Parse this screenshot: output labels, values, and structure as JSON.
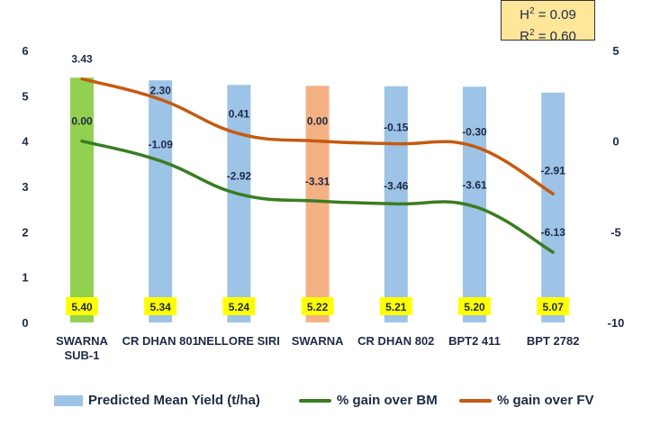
{
  "chart_data": {
    "type": "bar",
    "categories": [
      "SWARNA SUB-1",
      "CR DHAN 801",
      "NELLORE SIRI",
      "SWARNA",
      "CR DHAN 802",
      "BPT2 411",
      "BPT 2782"
    ],
    "y_left": {
      "min": 0,
      "max": 6,
      "ticks": [
        "0",
        "1",
        "2",
        "3",
        "4",
        "5",
        "6"
      ]
    },
    "y_right": {
      "min": -10,
      "max": 5,
      "ticks": [
        "-10",
        "-5",
        "0",
        "5"
      ]
    },
    "grid": false,
    "legend_position": "bottom",
    "series": [
      {
        "name": "Predicted Mean Yield (t/ha)",
        "kind": "bar",
        "axis": "left",
        "values": [
          5.4,
          5.34,
          5.24,
          5.22,
          5.21,
          5.2,
          5.07
        ],
        "labels": [
          "5.40",
          "5.34",
          "5.24",
          "5.22",
          "5.21",
          "5.20",
          "5.07"
        ],
        "color": "#9dc3e6",
        "highlight_colors": [
          "#92d050",
          "#9dc3e6",
          "#9dc3e6",
          "#f4b183",
          "#9dc3e6",
          "#9dc3e6",
          "#9dc3e6"
        ]
      },
      {
        "name": "% gain over BM",
        "kind": "line",
        "axis": "right",
        "values": [
          0.0,
          -1.09,
          -2.92,
          -3.31,
          -3.46,
          -3.61,
          -6.13
        ],
        "labels": [
          "0.00",
          "-1.09",
          "-2.92",
          "-3.31",
          "-3.46",
          "-3.61",
          "-6.13"
        ],
        "color": "#3a7d22"
      },
      {
        "name": "% gain over FV",
        "kind": "line",
        "axis": "right",
        "values": [
          3.43,
          2.3,
          0.41,
          0.0,
          -0.15,
          -0.3,
          -2.91
        ],
        "labels": [
          "3.43",
          "2.30",
          "0.41",
          "0.00",
          "-0.15",
          "-0.30",
          "-2.91"
        ],
        "color": "#c55a11"
      }
    ],
    "annotation": {
      "h2_text": "= 0.09",
      "r2_text": "= 0.60",
      "h_symbol": "H",
      "r_symbol": "R",
      "superscript": "2"
    }
  },
  "colors": {
    "label_highlight": "#ffff00",
    "text": "#1f2a44",
    "stats_box_bg": "#ffe699"
  }
}
